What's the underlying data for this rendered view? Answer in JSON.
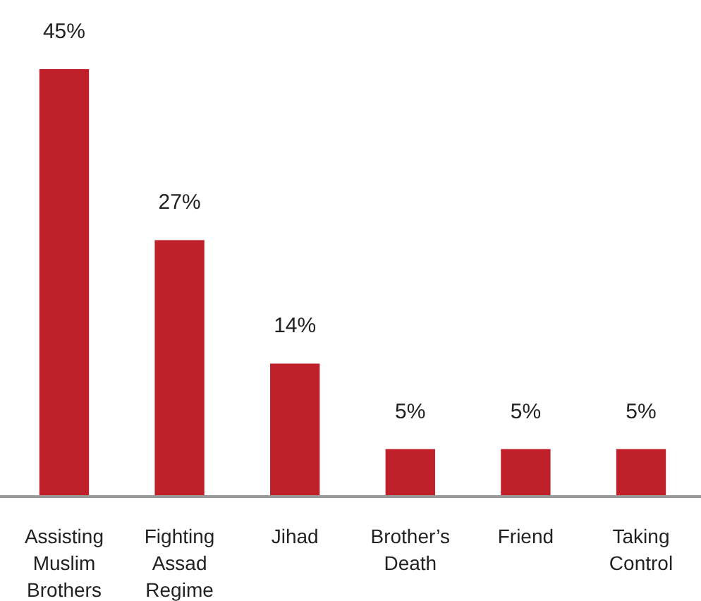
{
  "chart_data": {
    "type": "bar",
    "categories": [
      "Assisting Muslim Brothers",
      "Fighting Assad Regime",
      "Jihad",
      "Brother’s Death",
      "Friend",
      "Taking Control"
    ],
    "values": [
      45,
      27,
      14,
      5,
      5,
      5
    ],
    "value_labels": [
      "45%",
      "27%",
      "14%",
      "5%",
      "5%",
      "5%"
    ],
    "color": "#c0202a"
  }
}
